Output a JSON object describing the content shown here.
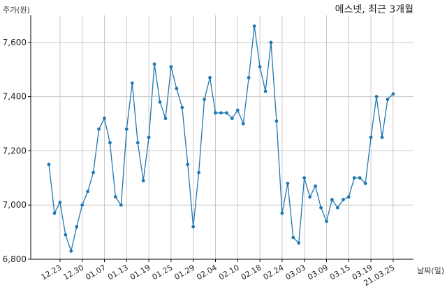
{
  "chart_data": {
    "type": "line",
    "title": "에스넷, 최근 3개월",
    "ylabel": "주가(원)",
    "xlabel": "날짜(일)",
    "ylim": [
      6800,
      7700
    ],
    "yticks": [
      6800,
      7000,
      7200,
      7400,
      7600
    ],
    "ytick_labels": [
      "6,800",
      "7,000",
      "7,200",
      "7,400",
      "7,600"
    ],
    "grid": true,
    "x_tick_labels": [
      "12.23",
      "12.30",
      "01.07",
      "01.13",
      "01.19",
      "01.25",
      "01.29",
      "02.04",
      "02.10",
      "02.18",
      "02.24",
      "03.03",
      "03.09",
      "03.15",
      "03.19",
      "21.03.25"
    ],
    "x_tick_indices": [
      2,
      6,
      10,
      14,
      18,
      22,
      26,
      30,
      34,
      38,
      42,
      46,
      50,
      54,
      58,
      62
    ],
    "series": [
      {
        "name": "",
        "color": "#1f77b4",
        "values": [
          7150,
          6970,
          7010,
          6890,
          6830,
          6920,
          7000,
          7050,
          7120,
          7280,
          7320,
          7230,
          7030,
          7000,
          7280,
          7450,
          7230,
          7090,
          7250,
          7520,
          7380,
          7320,
          7510,
          7430,
          7360,
          7150,
          6920,
          7120,
          7390,
          7470,
          7340,
          7340,
          7340,
          7320,
          7350,
          7300,
          7470,
          7660,
          7510,
          7420,
          7600,
          7310,
          6970,
          7080,
          6880,
          6860,
          7100,
          7030,
          7070,
          6990,
          6940,
          7020,
          6990,
          7020,
          7030,
          7100,
          7100,
          7080,
          7250,
          7400,
          7250,
          7390,
          7410
        ]
      }
    ]
  }
}
